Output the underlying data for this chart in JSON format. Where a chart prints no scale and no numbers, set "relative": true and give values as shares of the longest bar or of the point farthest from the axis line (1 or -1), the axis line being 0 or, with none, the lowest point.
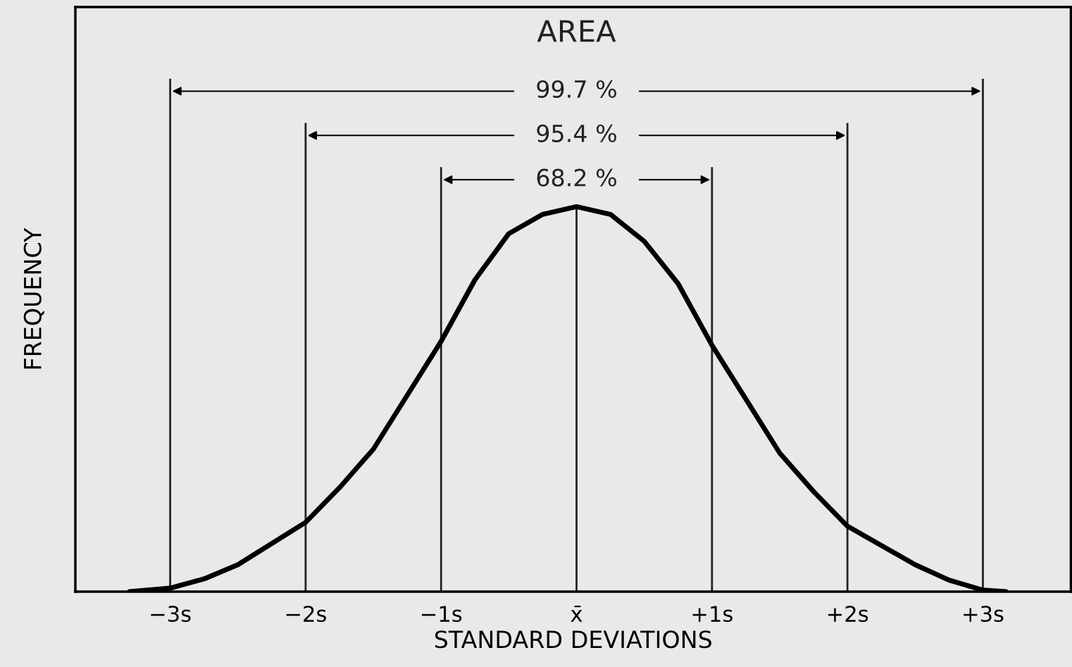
{
  "chart_data": {
    "type": "line",
    "title": "AREA",
    "xlabel": "STANDARD DEVIATIONS",
    "ylabel": "FREQUENCY",
    "relative": true,
    "xlim": [
      -3.7,
      3.65
    ],
    "xticks": [
      {
        "value": -3,
        "label": "−3s"
      },
      {
        "value": -2,
        "label": "−2s"
      },
      {
        "value": -1,
        "label": "−1s"
      },
      {
        "value": 0,
        "label": "x̄"
      },
      {
        "value": 1,
        "label": "+1s"
      },
      {
        "value": 2,
        "label": "+2s"
      },
      {
        "value": 3,
        "label": "+3s"
      }
    ],
    "tick_labels": "x",
    "grid": false,
    "legend": false,
    "marker": "none",
    "line_style": "solid",
    "series": [
      {
        "color": "#000000",
        "x": [
          -3.3,
          -3.0,
          -2.75,
          -2.5,
          -2.0,
          -1.75,
          -1.5,
          -1.25,
          -1.0,
          -0.75,
          -0.5,
          -0.25,
          0,
          0.25,
          0.5,
          0.75,
          1.0,
          1.25,
          1.5,
          1.75,
          2.0,
          2.5,
          2.75,
          3.0,
          3.17
        ],
        "values": [
          0,
          0.009,
          0.033,
          0.07,
          0.18,
          0.27,
          0.37,
          0.51,
          0.65,
          0.81,
          0.93,
          0.98,
          1,
          0.98,
          0.91,
          0.8,
          0.64,
          0.5,
          0.36,
          0.26,
          0.17,
          0.07,
          0.03,
          0.004,
          0
        ]
      }
    ],
    "ref_lines": [
      {
        "axis": "x",
        "value": -3
      },
      {
        "axis": "x",
        "value": -2
      },
      {
        "axis": "x",
        "value": -1
      },
      {
        "axis": "x",
        "value": 0
      },
      {
        "axis": "x",
        "value": 1
      },
      {
        "axis": "x",
        "value": 2
      },
      {
        "axis": "x",
        "value": 3
      }
    ],
    "annotations": [
      "68.2 %",
      "95.4 %",
      "99.7 %"
    ]
  }
}
